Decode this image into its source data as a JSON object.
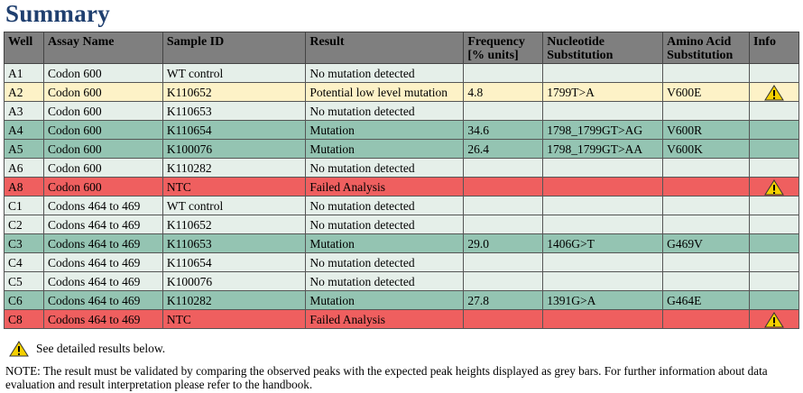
{
  "page": {
    "title": "Summary"
  },
  "table": {
    "headers": {
      "well": "Well",
      "assay": "Assay Name",
      "sample": "Sample ID",
      "result": "Result",
      "frequency": [
        "Frequency",
        "[% units]"
      ],
      "nucleotide": [
        "Nucleotide",
        "Substitution"
      ],
      "amino": [
        "Amino Acid",
        "Substitution"
      ],
      "info": "Info"
    },
    "rows": [
      {
        "well": "A1",
        "assay": "Codon 600",
        "sample": "WT control",
        "result": "No mutation detected",
        "frequency": "",
        "nucleotide": "",
        "amino": "",
        "status": "nomut",
        "warning": false
      },
      {
        "well": "A2",
        "assay": "Codon 600",
        "sample": "K110652",
        "result": "Potential low level mutation",
        "frequency": "4.8",
        "nucleotide": "1799T>A",
        "amino": "V600E",
        "status": "lowlevel",
        "warning": true
      },
      {
        "well": "A3",
        "assay": "Codon 600",
        "sample": "K110653",
        "result": "No mutation detected",
        "frequency": "",
        "nucleotide": "",
        "amino": "",
        "status": "nomut",
        "warning": false
      },
      {
        "well": "A4",
        "assay": "Codon 600",
        "sample": "K110654",
        "result": "Mutation",
        "frequency": "34.6",
        "nucleotide": "1798_1799GT>AG",
        "amino": "V600R",
        "status": "mutation",
        "warning": false
      },
      {
        "well": "A5",
        "assay": "Codon 600",
        "sample": "K100076",
        "result": "Mutation",
        "frequency": "26.4",
        "nucleotide": "1798_1799GT>AA",
        "amino": "V600K",
        "status": "mutation",
        "warning": false
      },
      {
        "well": "A6",
        "assay": "Codon 600",
        "sample": "K110282",
        "result": "No mutation detected",
        "frequency": "",
        "nucleotide": "",
        "amino": "",
        "status": "nomut",
        "warning": false
      },
      {
        "well": "A8",
        "assay": "Codon 600",
        "sample": "NTC",
        "result": "Failed Analysis",
        "frequency": "",
        "nucleotide": "",
        "amino": "",
        "status": "failed",
        "warning": true
      },
      {
        "well": "C1",
        "assay": "Codons 464 to 469",
        "sample": "WT control",
        "result": "No mutation detected",
        "frequency": "",
        "nucleotide": "",
        "amino": "",
        "status": "nomut",
        "warning": false
      },
      {
        "well": "C2",
        "assay": "Codons 464 to 469",
        "sample": "K110652",
        "result": "No mutation detected",
        "frequency": "",
        "nucleotide": "",
        "amino": "",
        "status": "nomut",
        "warning": false
      },
      {
        "well": "C3",
        "assay": "Codons 464 to 469",
        "sample": "K110653",
        "result": "Mutation",
        "frequency": "29.0",
        "nucleotide": "1406G>T",
        "amino": "G469V",
        "status": "mutation",
        "warning": false
      },
      {
        "well": "C4",
        "assay": "Codons 464 to 469",
        "sample": "K110654",
        "result": "No mutation detected",
        "frequency": "",
        "nucleotide": "",
        "amino": "",
        "status": "nomut",
        "warning": false
      },
      {
        "well": "C5",
        "assay": "Codons 464 to 469",
        "sample": "K100076",
        "result": "No mutation detected",
        "frequency": "",
        "nucleotide": "",
        "amino": "",
        "status": "nomut",
        "warning": false
      },
      {
        "well": "C6",
        "assay": "Codons 464 to 469",
        "sample": "K110282",
        "result": "Mutation",
        "frequency": "27.8",
        "nucleotide": "1391G>A",
        "amino": "G464E",
        "status": "mutation",
        "warning": false
      },
      {
        "well": "C8",
        "assay": "Codons 464 to 469",
        "sample": "NTC",
        "result": "Failed Analysis",
        "frequency": "",
        "nucleotide": "",
        "amino": "",
        "status": "failed",
        "warning": true
      }
    ]
  },
  "legend": {
    "text": "See detailed results below.",
    "icon": "warning-icon"
  },
  "note": "NOTE: The result must be validated by comparing the observed peaks with the expected peak heights displayed as grey bars. For further information about data evaluation and result interpretation please refer to the handbook.",
  "colors": {
    "title": "#1f3f6f",
    "header": "#7f7f7f",
    "no_mutation": "#e5efe9",
    "low_level": "#fdf2c7",
    "mutation": "#94c4b2",
    "failed": "#ef5f5f",
    "warning_fill": "#f5d000"
  }
}
